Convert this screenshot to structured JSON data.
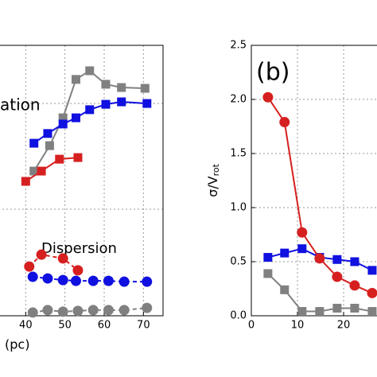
{
  "chart_data": [
    {
      "type": "line",
      "xlabel": "(pc)",
      "xlim": [
        30,
        75
      ],
      "ylim": [
        0,
        1
      ],
      "xticks": [
        40,
        50,
        60,
        70
      ],
      "grid": true,
      "gridy": [
        0.394,
        0.785
      ],
      "annotations": [
        "ation",
        "Dispersion"
      ],
      "series": [
        {
          "color": "#808080",
          "marker": "square",
          "dash": false,
          "x": [
            42.1,
            46.1,
            49.5,
            52.8,
            56.3,
            60.4,
            64.4,
            70.4
          ],
          "values": [
            0.535,
            0.629,
            0.732,
            0.874,
            0.906,
            0.856,
            0.844,
            0.841
          ]
        },
        {
          "color": "#1010e0",
          "marker": "square",
          "dash": false,
          "x": [
            42.1,
            45.6,
            49.5,
            52.8,
            56.3,
            60.4,
            64.4,
            70.9
          ],
          "values": [
            0.638,
            0.674,
            0.709,
            0.732,
            0.762,
            0.782,
            0.791,
            0.785
          ]
        },
        {
          "color": "#d62020",
          "marker": "square",
          "dash": false,
          "x": [
            40.0,
            44.0,
            48.6,
            53.3
          ],
          "values": [
            0.497,
            0.535,
            0.579,
            0.585
          ]
        },
        {
          "color": "#1010e0",
          "marker": "circle",
          "dash": true,
          "x": [
            41.8,
            45.6,
            49.5,
            52.8,
            57.2,
            61.1,
            65.1,
            70.9
          ],
          "values": [
            0.144,
            0.138,
            0.132,
            0.129,
            0.129,
            0.129,
            0.126,
            0.126
          ]
        },
        {
          "color": "#d62020",
          "marker": "circle",
          "dash": true,
          "x": [
            40.9,
            44.0,
            49.5,
            53.3
          ],
          "values": [
            0.182,
            0.226,
            0.212,
            0.168
          ]
        },
        {
          "color": "#808080",
          "marker": "circle",
          "dash": true,
          "x": [
            41.8,
            45.6,
            49.5,
            53.3,
            57.2,
            61.1,
            65.1,
            70.9
          ],
          "values": [
            0.012,
            0.021,
            0.015,
            0.018,
            0.021,
            0.021,
            0.021,
            0.029
          ]
        }
      ]
    },
    {
      "type": "line",
      "ylabel": "σ/V",
      "ylabel_sub": "rot",
      "xlim": [
        0,
        30
      ],
      "ylim": [
        0,
        2.5
      ],
      "xticks": [
        0,
        10,
        20
      ],
      "yticks": [
        {
          "value": 0,
          "label": "0.0"
        },
        {
          "value": 0.5,
          "label": "0.5"
        },
        {
          "value": 1,
          "label": "1.0"
        },
        {
          "value": 1.5,
          "label": "1.5"
        },
        {
          "value": 2,
          "label": "2.0"
        },
        {
          "value": 2.5,
          "label": "2.5"
        }
      ],
      "grid": true,
      "annotations": [
        "(b)"
      ],
      "series": [
        {
          "color": "#808080",
          "marker": "square",
          "dash": false,
          "x": [
            3.6,
            7.2,
            11,
            14.8,
            18.6,
            22.4,
            26.2
          ],
          "values": [
            0.39,
            0.24,
            0.04,
            0.04,
            0.07,
            0.07,
            0.04
          ]
        },
        {
          "color": "#1010e0",
          "marker": "square",
          "dash": false,
          "x": [
            3.6,
            7.2,
            11,
            14.8,
            18.6,
            22.4,
            26.2
          ],
          "values": [
            0.54,
            0.58,
            0.62,
            0.54,
            0.52,
            0.5,
            0.42
          ]
        },
        {
          "color": "#d62020",
          "marker": "circle",
          "dash": false,
          "x": [
            3.6,
            7.2,
            11,
            14.8,
            18.6,
            22.4,
            26.2
          ],
          "values": [
            2.02,
            1.79,
            0.77,
            0.53,
            0.36,
            0.28,
            0.21
          ]
        }
      ]
    }
  ]
}
